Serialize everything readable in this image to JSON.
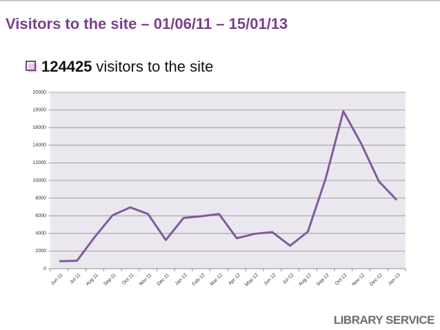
{
  "header": {
    "title": "Visitors to the site – 01/06/11 – 15/01/13"
  },
  "bullet": {
    "count": "124425",
    "text": "visitors to the site"
  },
  "footer": {
    "brand": "LIBRARY SERVICE"
  },
  "chart_data": {
    "type": "line",
    "categories": [
      "Jun-11",
      "Jul-11",
      "Aug-11",
      "Sep-11",
      "Oct-11",
      "Nov-11",
      "Dec-11",
      "Jan-12",
      "Feb-12",
      "Mar-12",
      "Apr-12",
      "May-12",
      "Jun-12",
      "Jul-12",
      "Aug-12",
      "Sep-12",
      "Oct-12",
      "Nov-12",
      "Dec-12",
      "Jan-13"
    ],
    "series": [
      {
        "color": "#7e5a9b",
        "values": [
          850,
          900,
          3600,
          6050,
          6950,
          6200,
          3250,
          5750,
          5950,
          6200,
          3450,
          3950,
          4150,
          2600,
          4200,
          10200,
          17850,
          14200,
          9900,
          7800
        ]
      }
    ],
    "ylim": [
      0,
      20000
    ],
    "yticks": [
      0,
      2000,
      4000,
      6000,
      8000,
      10000,
      12000,
      14000,
      16000,
      18000,
      20000
    ],
    "grid": true
  }
}
